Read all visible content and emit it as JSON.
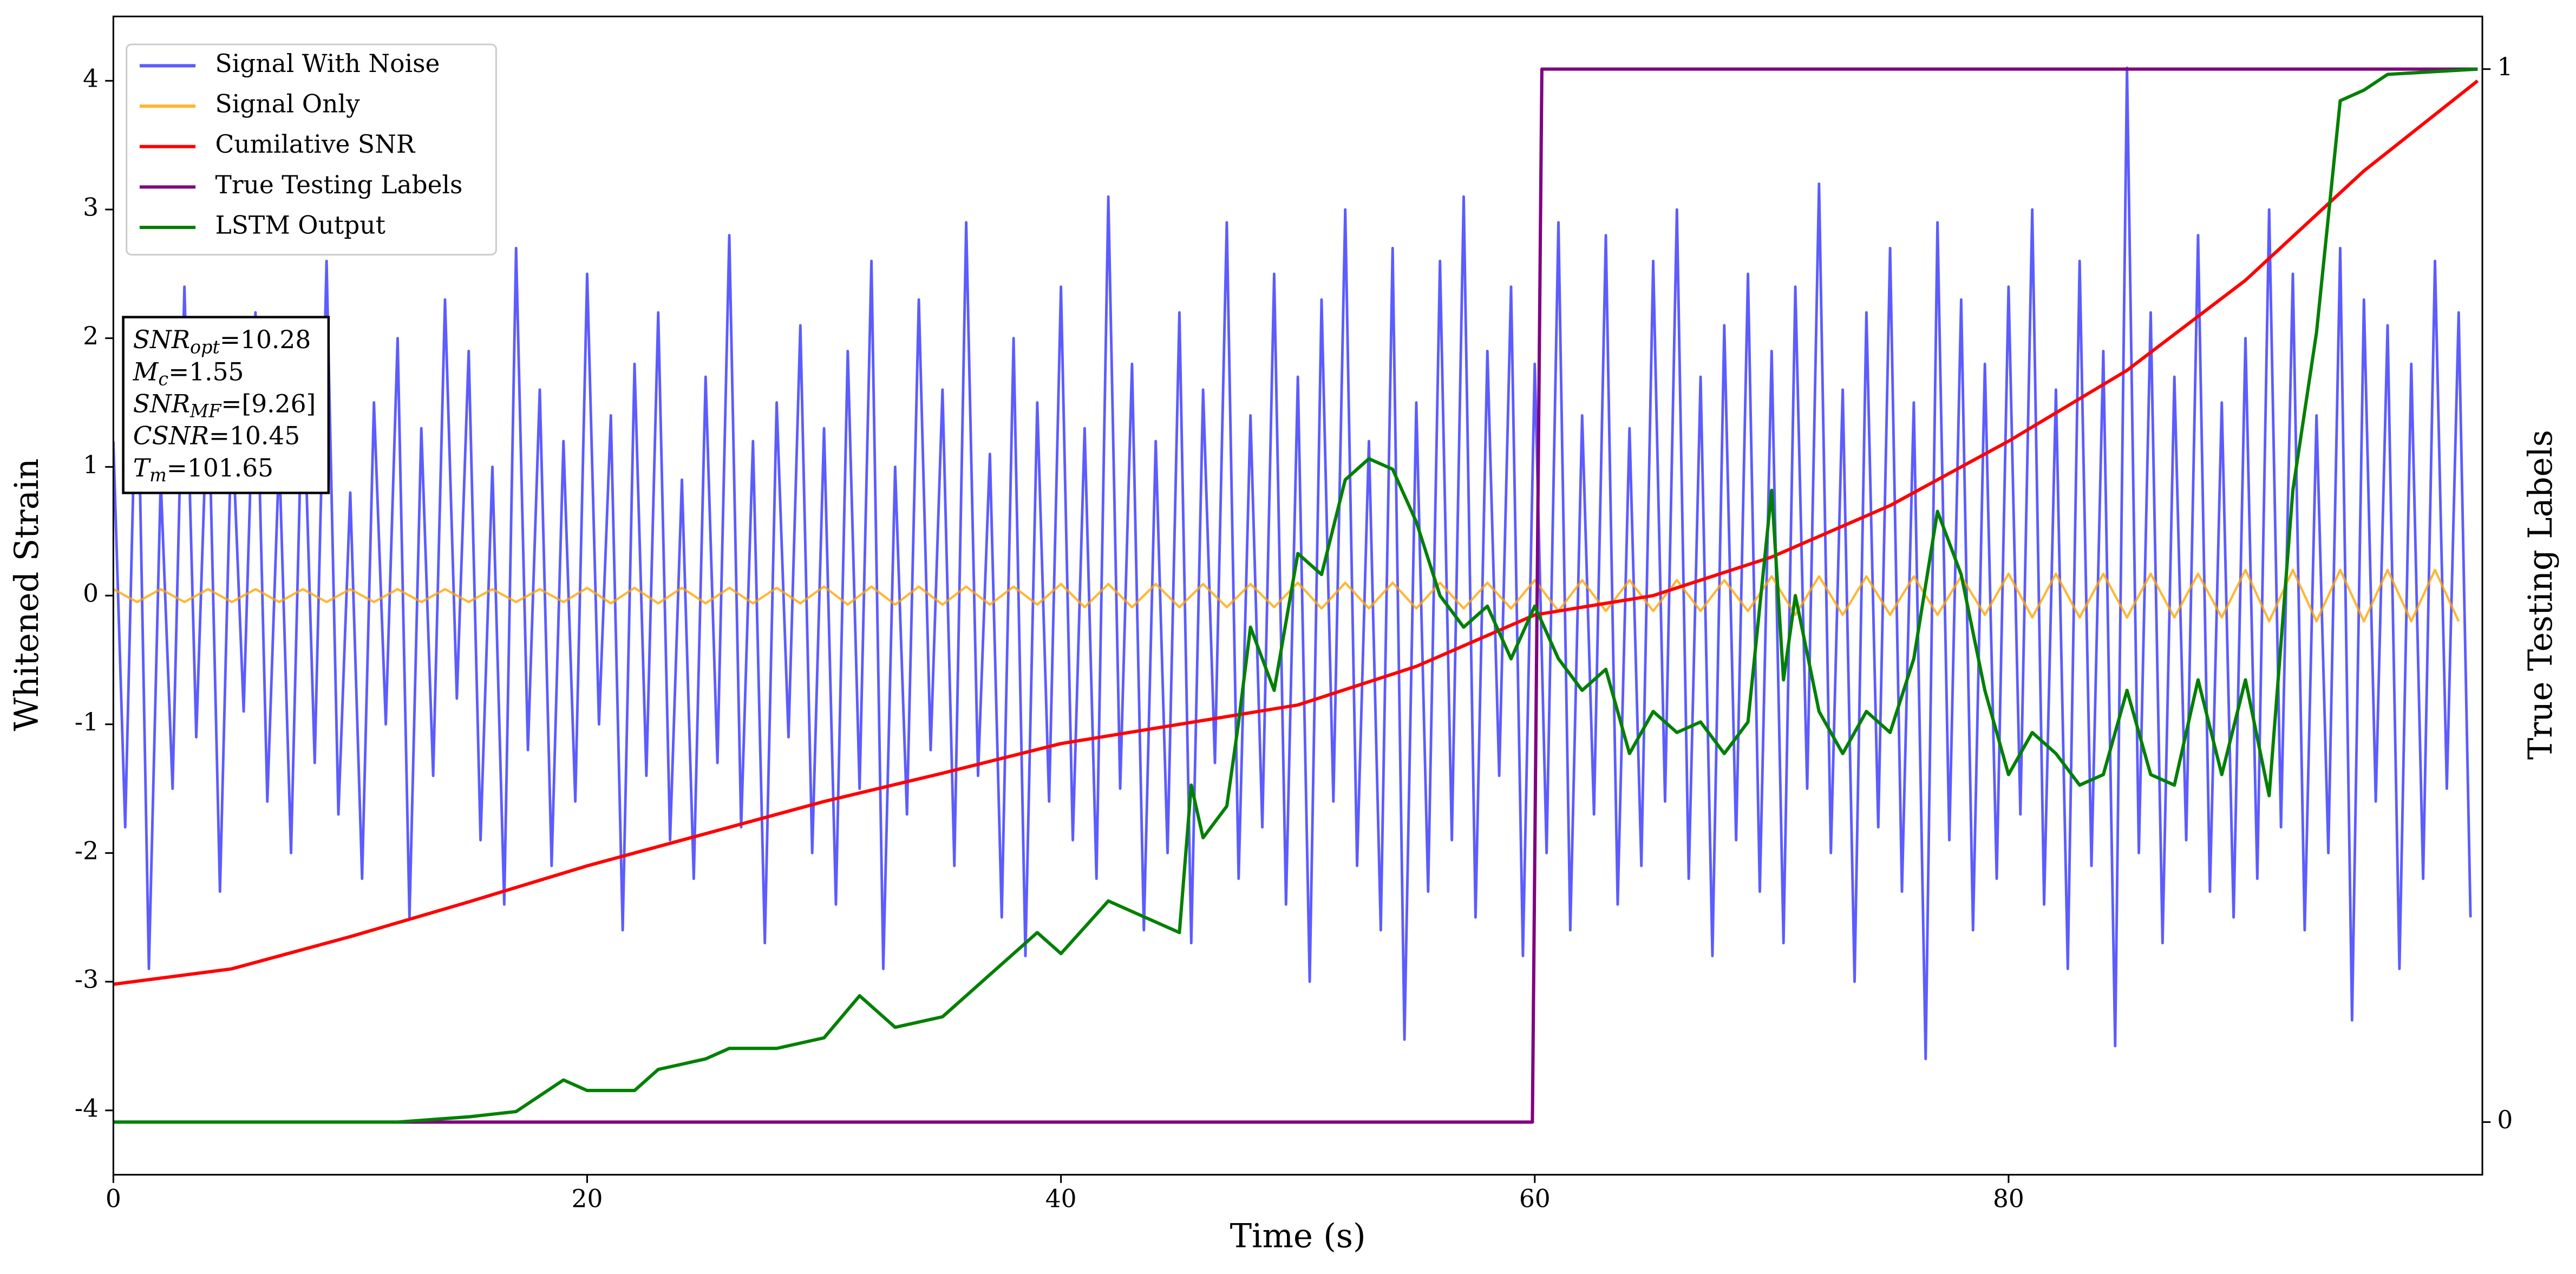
{
  "chart_data": {
    "type": "line",
    "xlabel": "Time (s)",
    "ylabel": "Whitened Strain",
    "y2label": "True Testing Labels",
    "xlim": [
      0,
      100
    ],
    "xticks": [
      0,
      20,
      40,
      60,
      80
    ],
    "ylim": [
      -4.5,
      4.5
    ],
    "yticks": [
      -4,
      -3,
      -2,
      -1,
      0,
      1,
      2,
      3,
      4
    ],
    "y2lim": [
      -0.05,
      1.05
    ],
    "y2ticks": [
      0,
      1
    ],
    "legend": "upper left",
    "grid": false,
    "annotations": [
      {
        "symbol": "SNR",
        "subscript": "opt",
        "text": "=10.28"
      },
      {
        "symbol": "M",
        "subscript": "c",
        "text": "=1.55"
      },
      {
        "symbol": "SNR",
        "subscript": "MF",
        "text": "=[9.26]"
      },
      {
        "symbol": "CSNR",
        "text": "=10.45"
      },
      {
        "symbol": "T",
        "subscript": "m",
        "text": "=101.65"
      }
    ],
    "series": [
      {
        "name": "Signal With Noise",
        "color": "#3333ff",
        "x": [
          0,
          0.5,
          1,
          1.5,
          2,
          2.5,
          3,
          3.5,
          4,
          4.5,
          5,
          5.5,
          6,
          6.5,
          7,
          7.5,
          8,
          8.5,
          9,
          9.5,
          10,
          10.5,
          11,
          11.5,
          12,
          12.5,
          13,
          13.5,
          14,
          14.5,
          15,
          15.5,
          16,
          16.5,
          17,
          17.5,
          18,
          18.5,
          19,
          19.5,
          20,
          20.5,
          21,
          21.5,
          22,
          22.5,
          23,
          23.5,
          24,
          24.5,
          25,
          25.5,
          26,
          26.5,
          27,
          27.5,
          28,
          28.5,
          29,
          29.5,
          30,
          30.5,
          31,
          31.5,
          32,
          32.5,
          33,
          33.5,
          34,
          34.5,
          35,
          35.5,
          36,
          36.5,
          37,
          37.5,
          38,
          38.5,
          39,
          39.5,
          40,
          40.5,
          41,
          41.5,
          42,
          42.5,
          43,
          43.5,
          44,
          44.5,
          45,
          45.5,
          46,
          46.5,
          47,
          47.5,
          48,
          48.5,
          49,
          49.5,
          50,
          50.5,
          51,
          51.5,
          52,
          52.5,
          53,
          53.5,
          54,
          54.5,
          55,
          55.5,
          56,
          56.5,
          57,
          57.5,
          58,
          58.5,
          59,
          59.5,
          60,
          60.5,
          61,
          61.5,
          62,
          62.5,
          63,
          63.5,
          64,
          64.5,
          65,
          65.5,
          66,
          66.5,
          67,
          67.5,
          68,
          68.5,
          69,
          69.5,
          70,
          70.5,
          71,
          71.5,
          72,
          72.5,
          73,
          73.5,
          74,
          74.5,
          75,
          75.5,
          76,
          76.5,
          77,
          77.5,
          78,
          78.5,
          79,
          79.5,
          80,
          80.5,
          81,
          81.5,
          82,
          82.5,
          83,
          83.5,
          84,
          84.5,
          85,
          85.5,
          86,
          86.5,
          87,
          87.5,
          88,
          88.5,
          89,
          89.5,
          90,
          90.5,
          91,
          91.5,
          92,
          92.5,
          93,
          93.5,
          94,
          94.5,
          95,
          95.5,
          96,
          96.5,
          97,
          97.5,
          98,
          98.5,
          99,
          99.5
        ],
        "values": [
          1.2,
          -1.8,
          2.1,
          -2.9,
          0.9,
          -1.5,
          2.4,
          -1.1,
          1.7,
          -2.3,
          1.4,
          -0.9,
          2.2,
          -1.6,
          1.1,
          -2.0,
          1.8,
          -1.3,
          2.6,
          -1.7,
          0.8,
          -2.2,
          1.5,
          -1.0,
          2.0,
          -2.5,
          1.3,
          -1.4,
          2.3,
          -0.8,
          1.9,
          -1.9,
          1.0,
          -2.4,
          2.7,
          -1.2,
          1.6,
          -2.1,
          1.2,
          -1.6,
          2.5,
          -1.0,
          1.4,
          -2.6,
          1.8,
          -1.4,
          2.2,
          -1.9,
          0.9,
          -2.2,
          1.7,
          -1.3,
          2.8,
          -1.8,
          1.2,
          -2.7,
          1.5,
          -1.1,
          2.1,
          -2.0,
          1.3,
          -2.4,
          1.9,
          -1.5,
          2.6,
          -2.9,
          1.0,
          -1.7,
          2.3,
          -1.2,
          1.6,
          -2.1,
          2.9,
          -1.4,
          1.1,
          -2.5,
          2.0,
          -2.8,
          1.5,
          -1.6,
          2.4,
          -1.9,
          1.3,
          -2.2,
          3.1,
          -1.5,
          1.8,
          -2.6,
          1.2,
          -2.0,
          2.2,
          -2.7,
          1.6,
          -1.3,
          2.9,
          -2.2,
          1.4,
          -1.8,
          2.5,
          -2.4,
          1.7,
          -3.0,
          2.3,
          -1.6,
          3.0,
          -2.1,
          1.2,
          -2.6,
          2.7,
          -3.45,
          1.5,
          -2.3,
          2.6,
          -1.9,
          3.1,
          -2.5,
          1.9,
          -1.4,
          2.4,
          -2.8,
          1.8,
          -2.0,
          2.9,
          -2.6,
          1.4,
          -1.7,
          2.8,
          -2.4,
          1.3,
          -2.1,
          2.6,
          -1.6,
          3.0,
          -2.2,
          1.7,
          -2.8,
          2.1,
          -1.9,
          2.5,
          -2.3,
          1.9,
          -2.7,
          2.4,
          -1.5,
          3.2,
          -2.0,
          1.6,
          -3.0,
          2.2,
          -1.8,
          2.7,
          -2.3,
          1.5,
          -3.6,
          2.9,
          -1.9,
          2.3,
          -2.6,
          1.8,
          -2.2,
          2.4,
          -1.7,
          3.0,
          -2.4,
          1.6,
          -2.9,
          2.6,
          -2.1,
          1.9,
          -3.5,
          4.1,
          -2.0,
          2.2,
          -2.7,
          1.7,
          -1.9,
          2.8,
          -2.3,
          1.5,
          -2.5,
          2.0,
          -2.2,
          3.0,
          -1.8,
          2.5,
          -2.6,
          1.4,
          -2.0,
          2.7,
          -3.3,
          2.3,
          -1.6,
          2.1,
          -2.9,
          1.8,
          -2.2,
          2.6,
          -1.5,
          2.2,
          -2.5
        ]
      },
      {
        "name": "Signal Only",
        "color": "#ffa500",
        "x": [
          0,
          1,
          2,
          3,
          4,
          5,
          6,
          7,
          8,
          9,
          10,
          11,
          12,
          13,
          14,
          15,
          16,
          17,
          18,
          19,
          20,
          21,
          22,
          23,
          24,
          25,
          26,
          27,
          28,
          29,
          30,
          31,
          32,
          33,
          34,
          35,
          36,
          37,
          38,
          39,
          40,
          41,
          42,
          43,
          44,
          45,
          46,
          47,
          48,
          49,
          50,
          51,
          52,
          53,
          54,
          55,
          56,
          57,
          58,
          59,
          60,
          61,
          62,
          63,
          64,
          65,
          66,
          67,
          68,
          69,
          70,
          71,
          72,
          73,
          74,
          75,
          76,
          77,
          78,
          79,
          80,
          81,
          82,
          83,
          84,
          85,
          86,
          87,
          88,
          89,
          90,
          91,
          92,
          93,
          94,
          95,
          96,
          97,
          98,
          99
        ],
        "values": [
          0.05,
          -0.05,
          0.05,
          -0.05,
          0.05,
          -0.05,
          0.05,
          -0.05,
          0.05,
          -0.05,
          0.05,
          -0.05,
          0.05,
          -0.05,
          0.05,
          -0.05,
          0.05,
          -0.05,
          0.05,
          -0.05,
          0.06,
          -0.06,
          0.06,
          -0.06,
          0.06,
          -0.06,
          0.06,
          -0.06,
          0.06,
          -0.06,
          0.07,
          -0.07,
          0.07,
          -0.07,
          0.07,
          -0.07,
          0.07,
          -0.07,
          0.07,
          -0.07,
          0.09,
          -0.09,
          0.09,
          -0.09,
          0.09,
          -0.09,
          0.09,
          -0.09,
          0.09,
          -0.09,
          0.1,
          -0.1,
          0.1,
          -0.1,
          0.1,
          -0.1,
          0.1,
          -0.1,
          0.1,
          -0.1,
          0.12,
          -0.12,
          0.12,
          -0.12,
          0.12,
          -0.12,
          0.12,
          -0.12,
          0.12,
          -0.12,
          0.15,
          -0.15,
          0.15,
          -0.15,
          0.15,
          -0.15,
          0.15,
          -0.15,
          0.15,
          -0.15,
          0.17,
          -0.17,
          0.17,
          -0.17,
          0.17,
          -0.17,
          0.17,
          -0.17,
          0.17,
          -0.17,
          0.2,
          -0.2,
          0.2,
          -0.2,
          0.2,
          -0.2,
          0.2,
          -0.2,
          0.2,
          -0.2
        ]
      },
      {
        "name": "Cumilative SNR",
        "color": "#ff0000",
        "x": [
          0,
          5,
          10,
          15,
          20,
          25,
          30,
          35,
          40,
          45,
          50,
          55,
          60,
          65,
          70,
          75,
          80,
          85,
          90,
          95,
          99.8
        ],
        "values": [
          -3.02,
          -2.9,
          -2.65,
          -2.38,
          -2.1,
          -1.85,
          -1.6,
          -1.38,
          -1.15,
          -1.0,
          -0.85,
          -0.55,
          -0.15,
          0.0,
          0.3,
          0.7,
          1.2,
          1.75,
          2.45,
          3.3,
          4.0
        ]
      },
      {
        "name": "True Testing Labels",
        "color": "#800080",
        "axis": "y2",
        "x": [
          0,
          59.9,
          60.3,
          99.8
        ],
        "values": [
          0,
          0,
          1,
          1
        ]
      },
      {
        "name": "LSTM Output",
        "color": "#008000",
        "axis": "y2",
        "x": [
          0,
          12,
          15,
          17,
          19,
          20,
          22,
          23,
          25,
          26,
          28,
          30,
          31.5,
          33,
          35,
          37,
          39,
          40,
          42,
          43,
          45,
          45.5,
          46,
          47,
          47.5,
          48,
          49,
          50,
          51,
          52,
          53,
          54,
          55,
          56,
          57,
          58,
          59,
          60,
          61,
          62,
          63,
          64,
          65,
          66,
          67,
          68,
          69,
          70,
          70.5,
          71,
          72,
          73,
          74,
          75,
          76,
          77,
          78,
          79,
          80,
          81,
          82,
          83,
          84,
          85,
          86,
          87,
          88,
          89,
          90,
          91,
          92,
          93,
          94,
          95,
          96,
          99.8
        ],
        "values": [
          0,
          0,
          0.005,
          0.01,
          0.04,
          0.03,
          0.03,
          0.05,
          0.06,
          0.07,
          0.07,
          0.08,
          0.12,
          0.09,
          0.1,
          0.14,
          0.18,
          0.16,
          0.21,
          0.2,
          0.18,
          0.32,
          0.27,
          0.3,
          0.38,
          0.47,
          0.41,
          0.54,
          0.52,
          0.61,
          0.63,
          0.62,
          0.57,
          0.5,
          0.47,
          0.49,
          0.44,
          0.49,
          0.44,
          0.41,
          0.43,
          0.35,
          0.39,
          0.37,
          0.38,
          0.35,
          0.38,
          0.6,
          0.42,
          0.5,
          0.39,
          0.35,
          0.39,
          0.37,
          0.44,
          0.58,
          0.52,
          0.41,
          0.33,
          0.37,
          0.35,
          0.32,
          0.33,
          0.41,
          0.33,
          0.32,
          0.42,
          0.33,
          0.42,
          0.31,
          0.6,
          0.75,
          0.97,
          0.98,
          0.995,
          1.0
        ]
      }
    ]
  }
}
